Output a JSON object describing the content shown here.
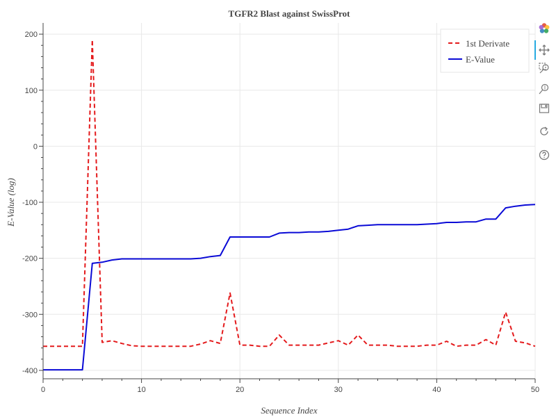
{
  "chart_data": {
    "type": "line",
    "title": "TGFR2 Blast against SwissProt",
    "xlabel": "Sequence Index",
    "ylabel": "E-Value (log)",
    "xlim": [
      0,
      50
    ],
    "ylim": [
      -415,
      220
    ],
    "xticks": [
      0,
      10,
      20,
      30,
      40,
      50
    ],
    "yticks": [
      200,
      100,
      0,
      -100,
      -200,
      -300,
      -400
    ],
    "grid": true,
    "legend_position": "top-right",
    "series": [
      {
        "name": "1st Derivate",
        "color": "#e41a1c",
        "dash": "dashed",
        "x": [
          0,
          1,
          2,
          3,
          4,
          5,
          6,
          7,
          8,
          9,
          10,
          11,
          12,
          13,
          14,
          15,
          16,
          17,
          18,
          19,
          20,
          21,
          22,
          23,
          24,
          25,
          26,
          27,
          28,
          29,
          30,
          31,
          32,
          33,
          34,
          35,
          36,
          37,
          38,
          39,
          40,
          41,
          42,
          43,
          44,
          45,
          46,
          47,
          48,
          49,
          50
        ],
        "y": [
          -357,
          -357,
          -357,
          -357,
          -357,
          190,
          -350,
          -347,
          -352,
          -356,
          -357,
          -357,
          -357,
          -357,
          -357,
          -357,
          -353,
          -347,
          -352,
          -262,
          -355,
          -355,
          -357,
          -357,
          -337,
          -355,
          -355,
          -355,
          -355,
          -351,
          -347,
          -355,
          -337,
          -355,
          -355,
          -355,
          -357,
          -357,
          -357,
          -355,
          -355,
          -348,
          -357,
          -355,
          -355,
          -345,
          -355,
          -296,
          -348,
          -351,
          -357
        ]
      },
      {
        "name": "E-Value",
        "color": "#0a0ad6",
        "dash": "solid",
        "x": [
          0,
          1,
          2,
          3,
          4,
          5,
          6,
          7,
          8,
          9,
          10,
          11,
          12,
          13,
          14,
          15,
          16,
          17,
          18,
          19,
          20,
          21,
          22,
          23,
          24,
          25,
          26,
          27,
          28,
          29,
          30,
          31,
          32,
          33,
          34,
          35,
          36,
          37,
          38,
          39,
          40,
          41,
          42,
          43,
          44,
          45,
          46,
          47,
          48,
          49,
          50
        ],
        "y": [
          -399,
          -399,
          -399,
          -399,
          -399,
          -209,
          -207,
          -203,
          -201,
          -201,
          -201,
          -201,
          -201,
          -201,
          -201,
          -201,
          -200,
          -197,
          -195,
          -162,
          -162,
          -162,
          -162,
          -162,
          -155,
          -154,
          -154,
          -153,
          -153,
          -152,
          -150,
          -148,
          -142,
          -141,
          -140,
          -140,
          -140,
          -140,
          -140,
          -139,
          -138,
          -136,
          -136,
          -135,
          -135,
          -130,
          -130,
          -110,
          -107,
          -105,
          -104
        ]
      }
    ]
  },
  "toolbar": {
    "logo": "bokeh-logo-icon",
    "tools": [
      "pan-icon",
      "box-zoom-icon",
      "wheel-zoom-icon",
      "save-icon",
      "reset-icon",
      "help-icon"
    ]
  }
}
